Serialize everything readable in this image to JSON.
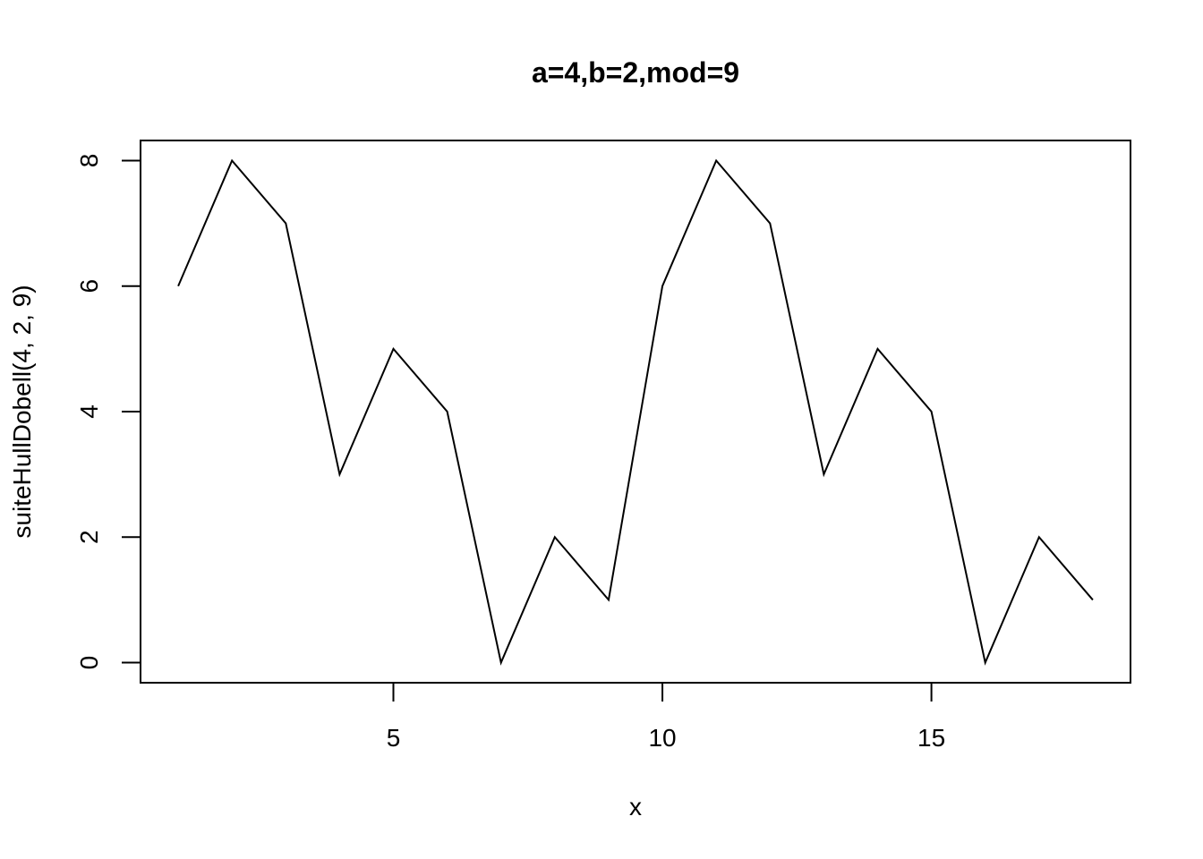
{
  "chart_data": {
    "type": "line",
    "title": "a=4,b=2,mod=9",
    "xlabel": "x",
    "ylabel": "suiteHullDobell(4, 2, 9)",
    "xlim": [
      0.3,
      18.7
    ],
    "ylim": [
      -0.32,
      8.32
    ],
    "x_ticks": [
      5,
      10,
      15
    ],
    "y_ticks": [
      0,
      2,
      4,
      6,
      8
    ],
    "x_tick_labels": [
      "5",
      "10",
      "15"
    ],
    "y_tick_labels": [
      "0",
      "2",
      "4",
      "6",
      "8"
    ],
    "grid": false,
    "legend": "none",
    "series": [
      {
        "color": "#000000",
        "x": [
          1,
          2,
          3,
          4,
          5,
          6,
          7,
          8,
          9,
          10,
          11,
          12,
          13,
          14,
          15,
          16,
          17,
          18
        ],
        "values": [
          6,
          8,
          7,
          3,
          5,
          4,
          0,
          2,
          1,
          6,
          8,
          7,
          3,
          5,
          4,
          0,
          2,
          1
        ]
      }
    ]
  }
}
